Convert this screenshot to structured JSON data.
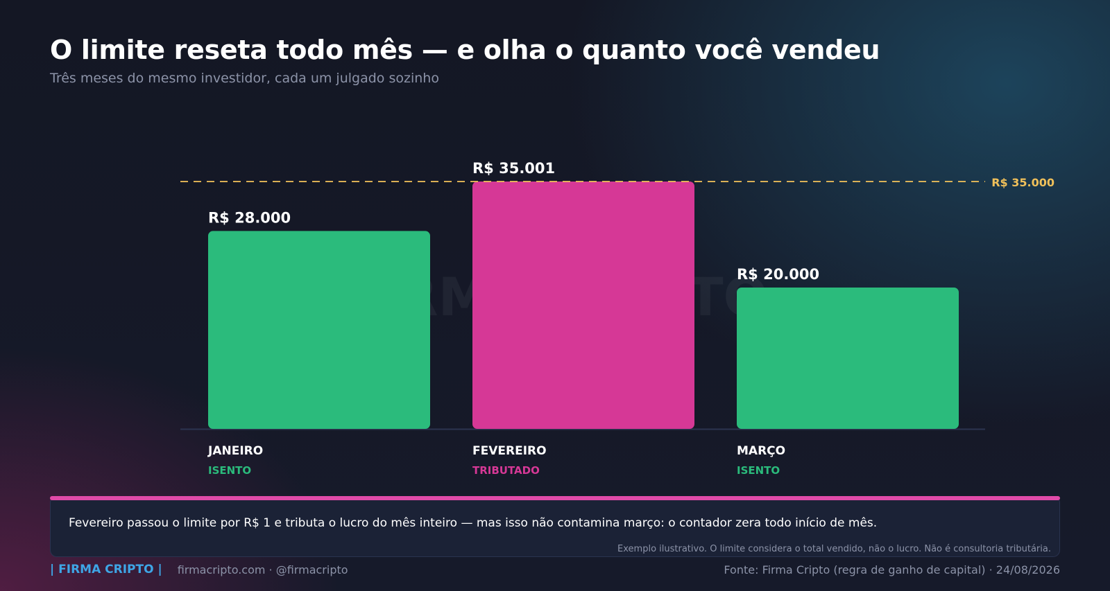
{
  "header": {
    "title": "O limite reseta todo mês — e olha o quanto você vendeu",
    "subtitle": "Três meses do mesmo investidor, cada um julgado sozinho"
  },
  "watermark": "FIRMA CRIPTO",
  "colors": {
    "exempt": "#2bbb7c",
    "taxed": "#d63896",
    "threshold": "#f0c05a",
    "callout_accent": "#e04aa8",
    "brand": "#3ea6e6"
  },
  "chart_data": {
    "type": "bar",
    "title": "O limite reseta todo mês — e olha o quanto você vendeu",
    "subtitle": "Três meses do mesmo investidor, cada um julgado sozinho",
    "categories": [
      "JANEIRO",
      "FEVEREIRO",
      "MARÇO"
    ],
    "values": [
      28000,
      35001,
      20000
    ],
    "value_labels": [
      "R$ 28.000",
      "R$ 35.001",
      "R$ 20.000"
    ],
    "status_labels": [
      "ISENTO",
      "TRIBUTADO",
      "ISENTO"
    ],
    "status": [
      "exempt",
      "taxed",
      "exempt"
    ],
    "threshold": {
      "value": 35000,
      "label": "R$ 35.000"
    },
    "ylim": [
      0,
      35001
    ],
    "grid": false,
    "legend": "none"
  },
  "callout": {
    "text": "Fevereiro passou o limite por R$ 1 e tributa o lucro do mês inteiro — mas isso não contamina março: o contador zera todo início de mês.",
    "note": "Exemplo ilustrativo. O limite considera o total vendido, não o lucro. Não é consultoria tributária."
  },
  "footer": {
    "brand": "| FIRMA CRIPTO |",
    "links": "firmacripto.com  ·  @firmacripto",
    "source": "Fonte: Firma Cripto (regra de ganho de capital)  ·  24/08/2026"
  }
}
